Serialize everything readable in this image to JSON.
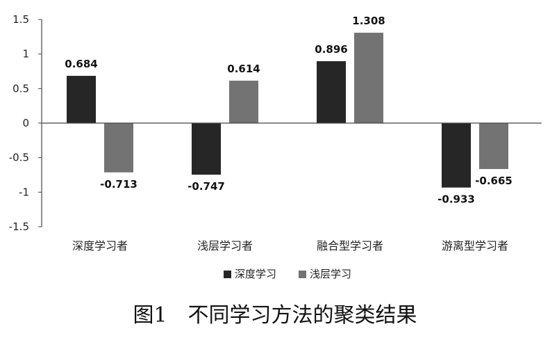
{
  "chart_data": {
    "type": "bar",
    "categories": [
      "深度学习者",
      "浅层学习者",
      "融合型学习者",
      "游离型学习者"
    ],
    "series": [
      {
        "name": "深度学习",
        "values": [
          0.684,
          -0.747,
          0.896,
          -0.933
        ],
        "color": "#262626"
      },
      {
        "name": "浅层学习",
        "values": [
          -0.713,
          0.614,
          1.308,
          -0.665
        ],
        "color": "#737373"
      }
    ],
    "data_labels": [
      [
        "0.684",
        "-0.747",
        "0.896",
        "-0.933"
      ],
      [
        "-0.713",
        "0.614",
        "1.308",
        "-0.665"
      ]
    ],
    "yticks": [
      1.5,
      1,
      0.5,
      0,
      -0.5,
      -1,
      -1.5
    ],
    "ytick_labels": [
      "1.5",
      "1",
      "0.5",
      "0",
      "-0.5",
      "-1",
      "-1.5"
    ],
    "ylim": [
      -1.5,
      1.5
    ],
    "legend_position": "bottom",
    "grid": false,
    "title": "",
    "xlabel": "",
    "ylabel": ""
  },
  "caption": "图1　不同学习方法的聚类结果"
}
